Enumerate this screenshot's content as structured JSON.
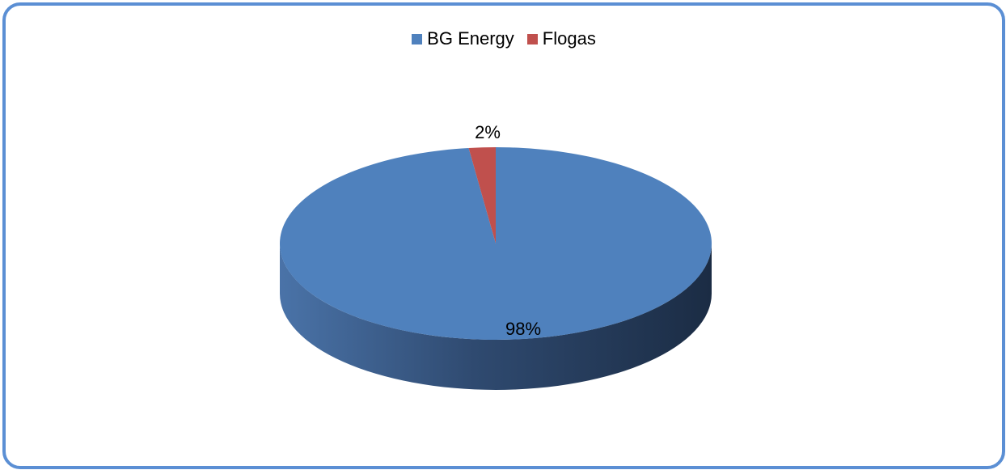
{
  "chart_data": {
    "type": "pie",
    "categories": [
      "BG Energy",
      "Flogas"
    ],
    "values": [
      98,
      2
    ],
    "data_labels": [
      "98%",
      "2%"
    ],
    "colors": [
      "#4f81bd",
      "#c0504d"
    ],
    "legend_position": "top",
    "style": "3d"
  }
}
